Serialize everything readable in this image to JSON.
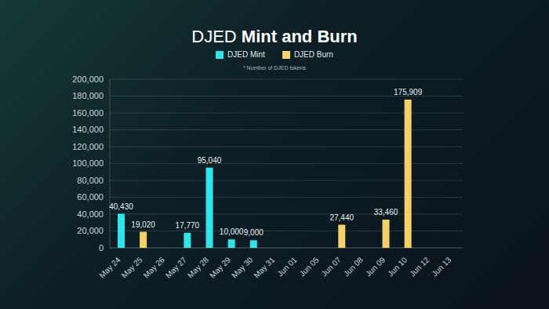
{
  "chart_data": {
    "type": "bar",
    "title": "DJED Mint and Burn",
    "subtitle": "* Number of DJED tokens",
    "categories": [
      "May 24",
      "May 25",
      "May 26",
      "May 27",
      "May 28",
      "May 29",
      "May 30",
      "May 31",
      "Jun 01",
      "Jun 05",
      "Jun 07",
      "Jun 08",
      "Jun 09",
      "Jun 10",
      "Jun 12",
      "Jun 13"
    ],
    "series": [
      {
        "name": "DJED Mint",
        "color": "#2ee6ea",
        "values": [
          40430,
          null,
          null,
          17770,
          95040,
          10000,
          9000,
          null,
          null,
          null,
          null,
          null,
          null,
          null,
          null,
          null
        ],
        "value_labels": [
          "40,430",
          null,
          null,
          "17,770",
          "95,040",
          "10,000",
          "9,000",
          null,
          null,
          null,
          null,
          null,
          null,
          null,
          null,
          null
        ]
      },
      {
        "name": "DJED Burn",
        "color": "#f4d06a",
        "values": [
          null,
          19020,
          null,
          null,
          null,
          null,
          null,
          null,
          null,
          null,
          27440,
          null,
          33460,
          175909,
          null,
          null
        ],
        "value_labels": [
          null,
          "19,020",
          null,
          null,
          null,
          null,
          null,
          null,
          null,
          null,
          "27,440",
          null,
          "33,460",
          "175,909",
          null,
          null
        ]
      }
    ],
    "ylim": [
      0,
      200000
    ],
    "yticks": [
      0,
      {
        "value": 20000,
        "label": "20,000"
      },
      {
        "value": 40000,
        "label": "40,000"
      },
      {
        "value": 60000,
        "label": "60,000"
      },
      {
        "value": 80000,
        "label": "80,000"
      },
      {
        "value": 100000,
        "label": "100,000"
      },
      {
        "value": 120000,
        "label": "120,000"
      },
      {
        "value": 140000,
        "label": "140,000"
      },
      {
        "value": 160000,
        "label": "160,000"
      },
      {
        "value": 180000,
        "label": "180,000"
      },
      {
        "value": 200000,
        "label": "200,000"
      }
    ],
    "grid": true,
    "legend": "top",
    "data_labels": true
  }
}
